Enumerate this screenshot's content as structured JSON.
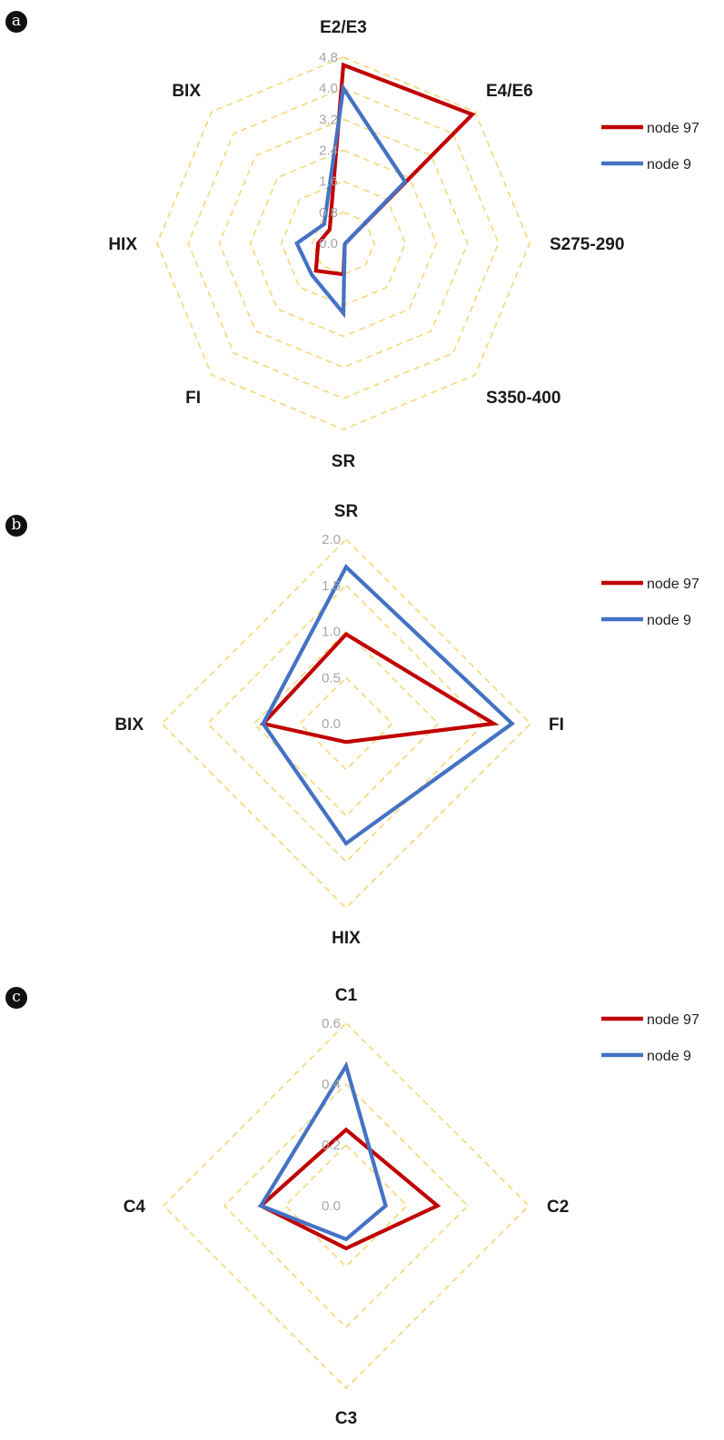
{
  "colors": {
    "node97": "#c00000",
    "node9": "#4472c4",
    "grid": "#f5d77a",
    "tick": "#a6a6a6"
  },
  "chart_data": [
    {
      "type": "radar",
      "panel_label": "a",
      "axes": [
        "E2/E3",
        "E4/E6",
        "S275-290",
        "S350-400",
        "SR",
        "FI",
        "HIX",
        "BIX"
      ],
      "rings": [
        0.0,
        0.8,
        1.6,
        2.4,
        3.2,
        4.0,
        4.8
      ],
      "tick_labels": [
        "0.0",
        "0.8",
        "1.6",
        "2.4",
        "3.2",
        "4.0",
        "4.8"
      ],
      "ylim": [
        0,
        4.8
      ],
      "legend_position": "right",
      "series": [
        {
          "name": "node 97",
          "color": "#c00000",
          "values": [
            4.6,
            4.7,
            0.05,
            0.05,
            0.8,
            1.0,
            0.65,
            0.5
          ]
        },
        {
          "name": "node 9",
          "color": "#4472c4",
          "values": [
            4.0,
            2.25,
            0.05,
            0.05,
            1.8,
            1.15,
            1.2,
            0.7
          ]
        }
      ]
    },
    {
      "type": "radar",
      "panel_label": "b",
      "axes": [
        "SR",
        "FI",
        "HIX",
        "BIX"
      ],
      "rings": [
        0.0,
        0.5,
        1.0,
        1.5,
        2.0
      ],
      "tick_labels": [
        "0.0",
        "0.5",
        "1.0",
        "1.5",
        "2.0"
      ],
      "ylim": [
        0,
        2.0
      ],
      "legend_position": "right",
      "series": [
        {
          "name": "node 97",
          "color": "#c00000",
          "values": [
            0.97,
            1.6,
            0.2,
            0.9
          ]
        },
        {
          "name": "node 9",
          "color": "#4472c4",
          "values": [
            1.7,
            1.8,
            1.3,
            0.9
          ]
        }
      ]
    },
    {
      "type": "radar",
      "panel_label": "c",
      "axes": [
        "C1",
        "C2",
        "C3",
        "C4"
      ],
      "rings": [
        0.0,
        0.2,
        0.4,
        0.6
      ],
      "tick_labels": [
        "0.0",
        "0.2",
        "0.4",
        "0.6"
      ],
      "ylim": [
        0,
        0.6
      ],
      "legend_position": "right",
      "series": [
        {
          "name": "node 97",
          "color": "#c00000",
          "values": [
            0.25,
            0.3,
            0.14,
            0.28
          ]
        },
        {
          "name": "node 9",
          "color": "#4472c4",
          "values": [
            0.46,
            0.13,
            0.11,
            0.28
          ]
        }
      ]
    }
  ]
}
